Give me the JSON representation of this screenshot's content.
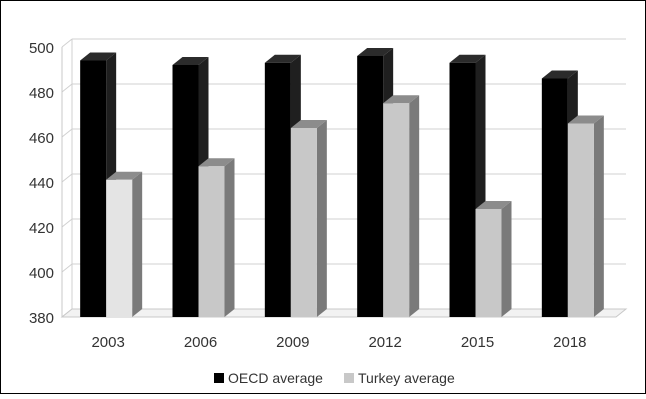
{
  "chart_data": {
    "type": "bar",
    "title": "",
    "xlabel": "",
    "ylabel": "",
    "categories": [
      "2003",
      "2006",
      "2009",
      "2012",
      "2015",
      "2018"
    ],
    "series": [
      {
        "name": "OECD average",
        "values": [
          494,
          492,
          493,
          496,
          493,
          486
        ],
        "color": "#000000",
        "side_color": "#1f1f1f",
        "top_color": "#2b2b2b"
      },
      {
        "name": "Turkey average",
        "values": [
          441,
          447,
          464,
          475,
          428,
          466
        ],
        "color": "#c8c8c8",
        "side_color": "#7a7a7a",
        "top_color": "#8c8c8c"
      }
    ],
    "first_bar_color": "#e4e4e4",
    "ylim": [
      380,
      500
    ],
    "yticks": [
      380,
      400,
      420,
      440,
      460,
      480,
      500
    ],
    "grid": true,
    "legend": "bottom",
    "three_d": true
  }
}
